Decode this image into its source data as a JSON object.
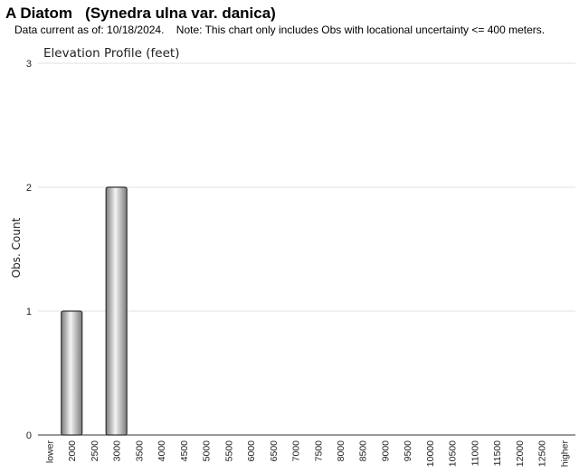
{
  "header": {
    "title": "A Diatom   (Synedra ulna var. danica)",
    "subtitle": "Data current as of: 10/18/2024.    Note: This chart only includes Obs with locational uncertainty <= 400 meters."
  },
  "chart_data": {
    "type": "bar",
    "title": "Elevation Profile (feet)",
    "xlabel": "",
    "ylabel": "Obs. Count",
    "categories": [
      "lower",
      "2000",
      "2500",
      "3000",
      "3500",
      "4000",
      "4500",
      "5000",
      "5500",
      "6000",
      "6500",
      "7000",
      "7500",
      "8000",
      "8500",
      "9000",
      "9500",
      "10000",
      "10500",
      "11000",
      "11500",
      "12000",
      "12500",
      "higher"
    ],
    "values": [
      0,
      1,
      0,
      2,
      0,
      0,
      0,
      0,
      0,
      0,
      0,
      0,
      0,
      0,
      0,
      0,
      0,
      0,
      0,
      0,
      0,
      0,
      0,
      0
    ],
    "ylim": [
      0,
      3
    ],
    "yticks": [
      0,
      1,
      2,
      3
    ],
    "grid": true,
    "legend": "none",
    "colors": {
      "bar_edge": "#333333",
      "bar_dark": "#7a7a7a",
      "bar_light": "#f4f4f4",
      "grid": "#e0e0e0",
      "axis": "#333333"
    }
  }
}
